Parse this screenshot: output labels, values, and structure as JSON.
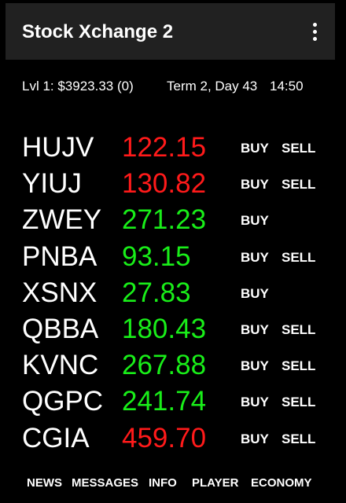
{
  "app_bar": {
    "title": "Stock Xchange 2",
    "menu_icon": "more-vert-icon"
  },
  "status": {
    "balance": "Lvl 1: $3923.33 (0)",
    "term": "Term 2, Day 43",
    "time": "14:50"
  },
  "colors": {
    "up": "#19ee19",
    "down": "#ff1a1a",
    "app_bar": "#212121",
    "background": "#000000"
  },
  "stocks": [
    {
      "ticker": "HUJV",
      "price": "122.15",
      "trend": "down",
      "buy": "BUY",
      "sell": "SELL"
    },
    {
      "ticker": "YIUJ",
      "price": "130.82",
      "trend": "down",
      "buy": "BUY",
      "sell": "SELL"
    },
    {
      "ticker": "ZWEY",
      "price": "271.23",
      "trend": "up",
      "buy": "BUY",
      "sell": null
    },
    {
      "ticker": "PNBA",
      "price": "93.15",
      "trend": "up",
      "buy": "BUY",
      "sell": "SELL"
    },
    {
      "ticker": "XSNX",
      "price": "27.83",
      "trend": "up",
      "buy": "BUY",
      "sell": null
    },
    {
      "ticker": "QBBA",
      "price": "180.43",
      "trend": "up",
      "buy": "BUY",
      "sell": "SELL"
    },
    {
      "ticker": "KVNC",
      "price": "267.88",
      "trend": "up",
      "buy": "BUY",
      "sell": "SELL"
    },
    {
      "ticker": "QGPC",
      "price": "241.74",
      "trend": "up",
      "buy": "BUY",
      "sell": "SELL"
    },
    {
      "ticker": "CGIA",
      "price": "459.70",
      "trend": "down",
      "buy": "BUY",
      "sell": "SELL"
    }
  ],
  "bottom_nav": [
    "NEWS",
    "MESSAGES",
    "INFO",
    "PLAYER",
    "ECONOMY"
  ]
}
